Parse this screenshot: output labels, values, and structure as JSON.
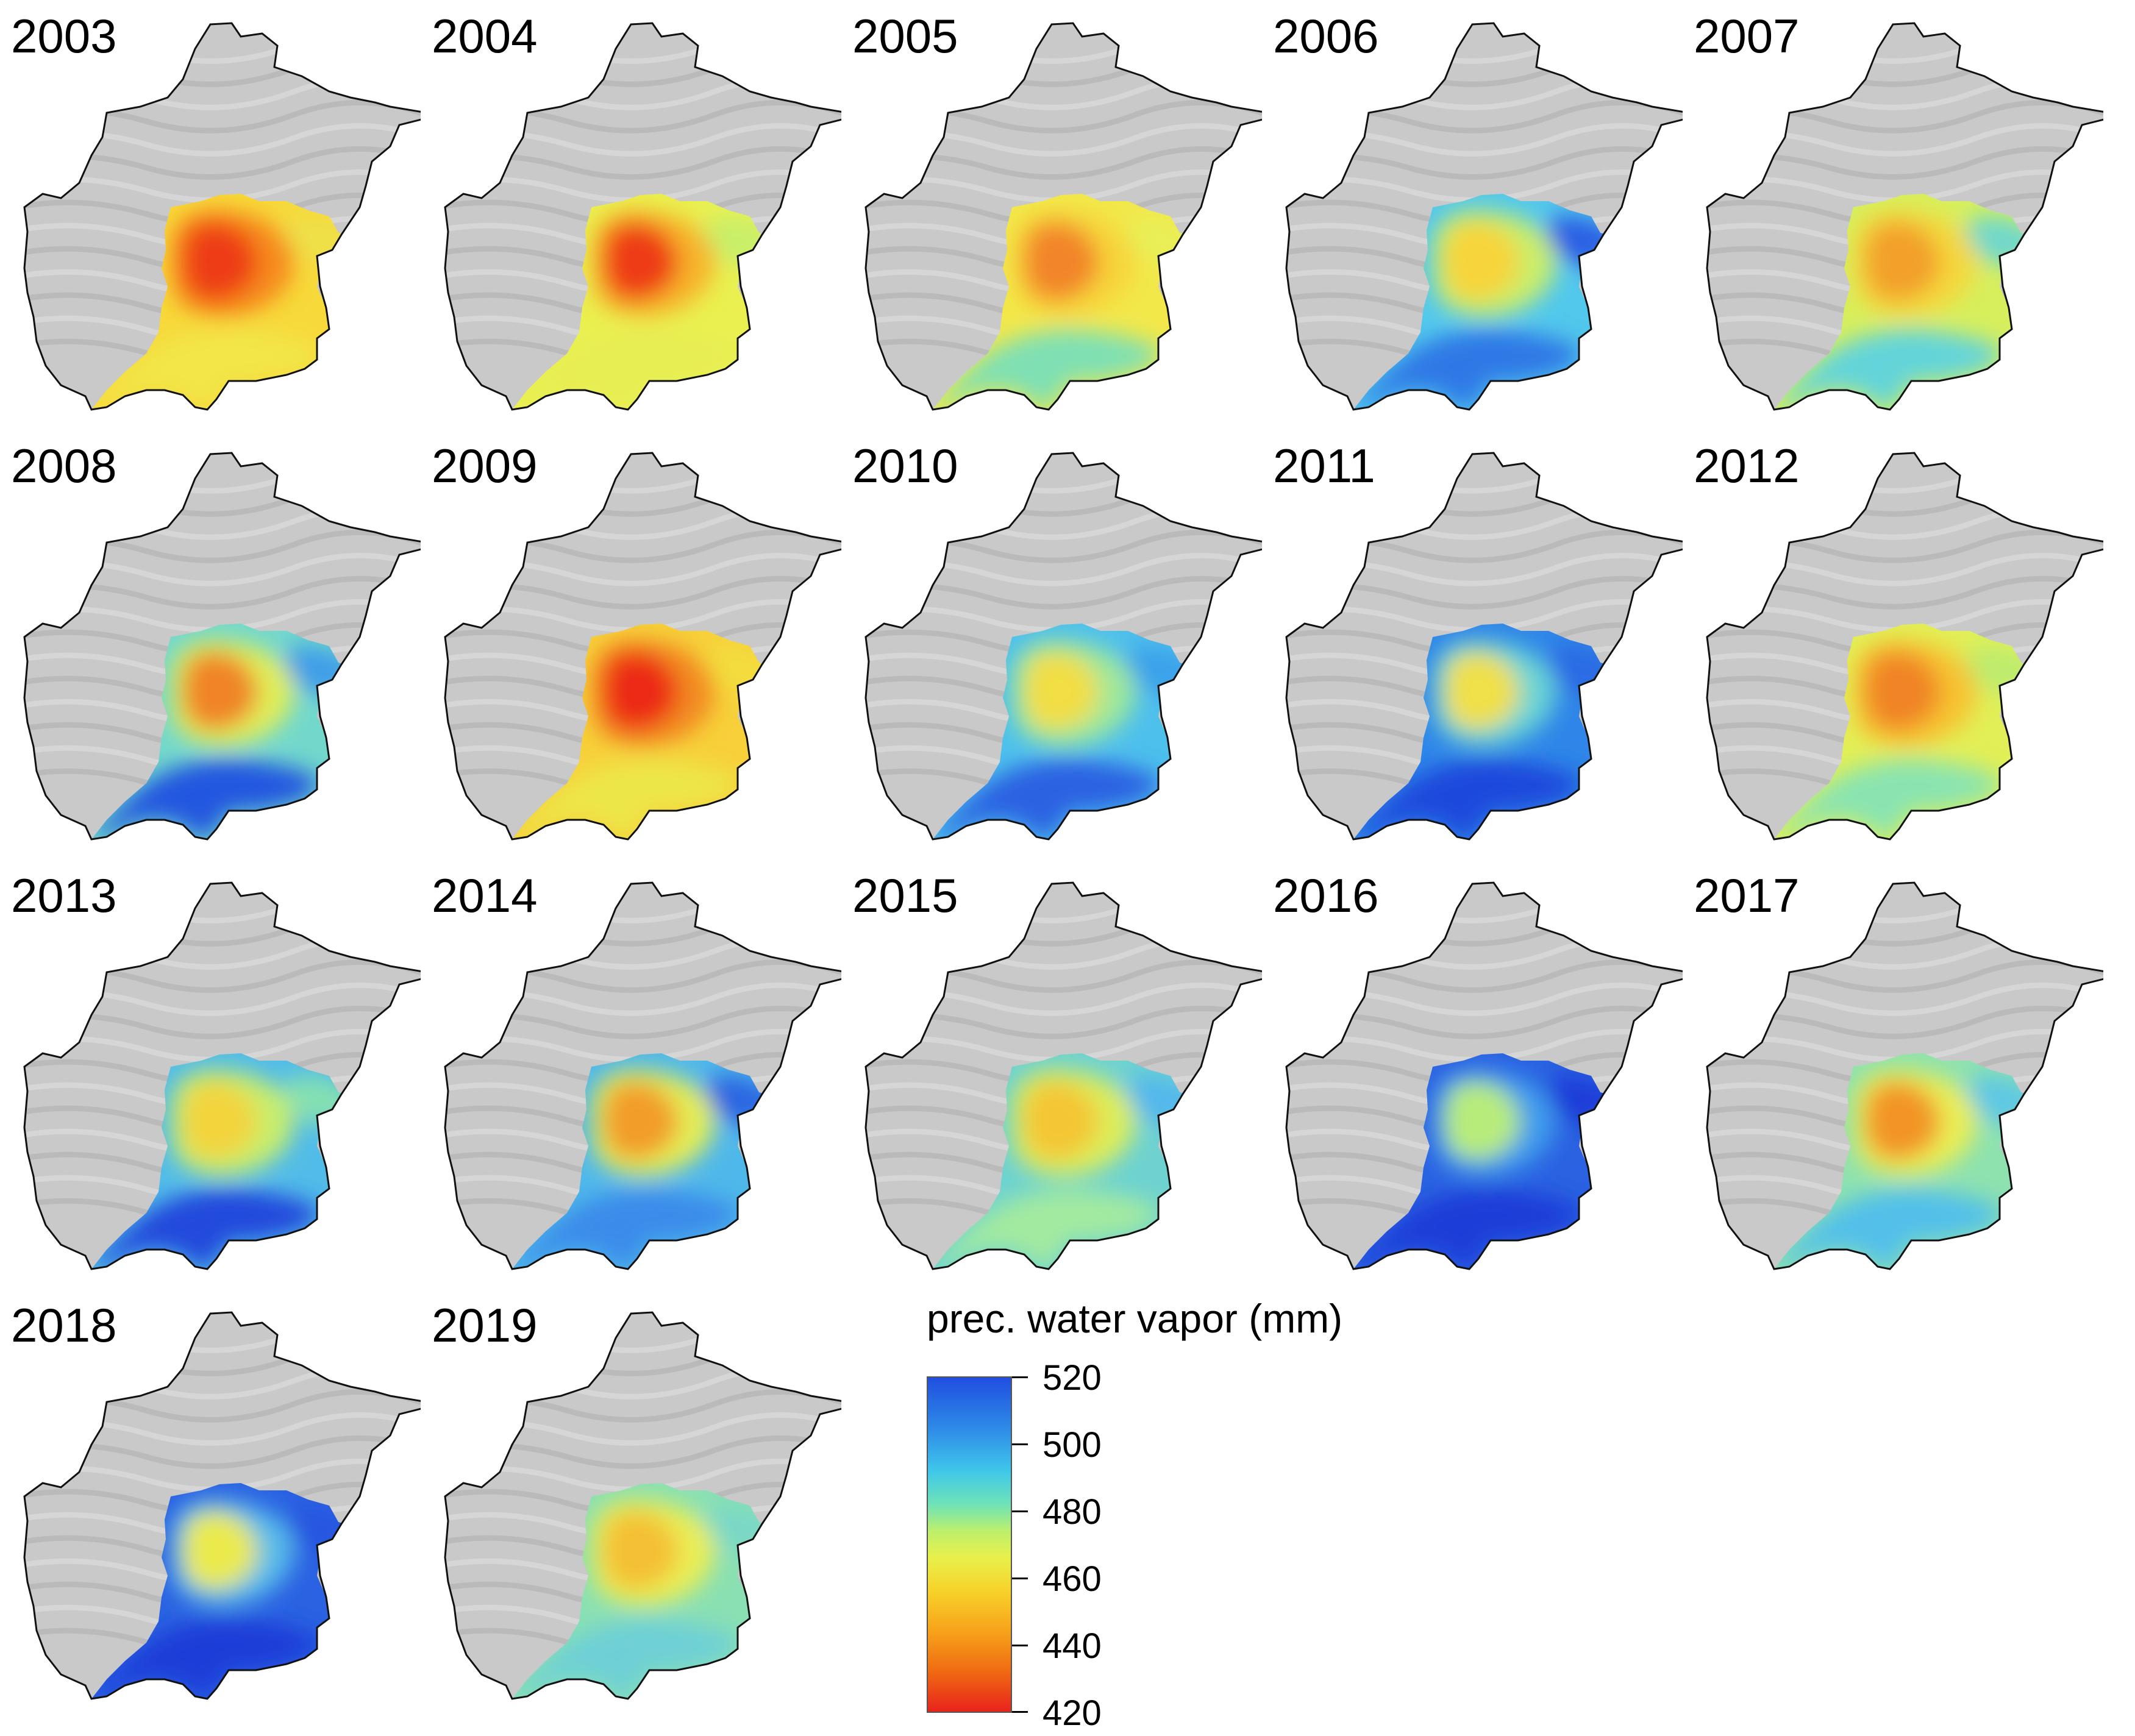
{
  "panels": [
    {
      "year": "2003",
      "core": "#ee3c18",
      "mid": "#f68a1e",
      "outer": "#f7d93a",
      "south": "#f2e64a",
      "east": "#efe04a"
    },
    {
      "year": "2004",
      "core": "#ee3c18",
      "mid": "#f7b22a",
      "outer": "#eaf050",
      "south": "#e7ee52",
      "east": "#c8ef6a"
    },
    {
      "year": "2005",
      "core": "#f2852a",
      "mid": "#f7d43a",
      "outer": "#f2e84a",
      "south": "#7fe0b4",
      "east": "#e9ef56"
    },
    {
      "year": "2006",
      "core": "#f7d43a",
      "mid": "#c9ee6a",
      "outer": "#52c8ec",
      "south": "#2f78e6",
      "east": "#2a5ee4"
    },
    {
      "year": "2007",
      "core": "#f2a02c",
      "mid": "#f5d73c",
      "outer": "#d7ef5c",
      "south": "#64d4da",
      "east": "#6fd8cc"
    },
    {
      "year": "2008",
      "core": "#f08426",
      "mid": "#e0ee58",
      "outer": "#72d8cc",
      "south": "#2456e0",
      "east": "#3f9ee8"
    },
    {
      "year": "2009",
      "core": "#ec2a16",
      "mid": "#f28a22",
      "outer": "#f7d03a",
      "south": "#ede64a",
      "east": "#f3dd3e"
    },
    {
      "year": "2010",
      "core": "#f2de44",
      "mid": "#9fe89a",
      "outer": "#4ec0ec",
      "south": "#2a62e2",
      "east": "#3aa2ea"
    },
    {
      "year": "2011",
      "core": "#f0e048",
      "mid": "#6ad4d4",
      "outer": "#2f86e8",
      "south": "#1f48dc",
      "east": "#2a6ae4"
    },
    {
      "year": "2012",
      "core": "#f08426",
      "mid": "#f7c232",
      "outer": "#e2ef56",
      "south": "#8ae4b0",
      "east": "#bdec6e"
    },
    {
      "year": "2013",
      "core": "#f3d43c",
      "mid": "#c7ee6c",
      "outer": "#52bce8",
      "south": "#2148dc",
      "east": "#84e0b2"
    },
    {
      "year": "2014",
      "core": "#f29d2a",
      "mid": "#e3ee56",
      "outer": "#4fb8ea",
      "south": "#3a8cea",
      "east": "#2a66e2"
    },
    {
      "year": "2015",
      "core": "#f4c636",
      "mid": "#dcee5a",
      "outer": "#6ed2d0",
      "south": "#a2eaa0",
      "east": "#52b8ec"
    },
    {
      "year": "2016",
      "core": "#b8ec7a",
      "mid": "#3f9cec",
      "outer": "#2a62e2",
      "south": "#1f3ed8",
      "east": "#1e3cd8"
    },
    {
      "year": "2017",
      "core": "#f29428",
      "mid": "#eaee54",
      "outer": "#8ee2ae",
      "south": "#52c0ea",
      "east": "#5ec8e4"
    },
    {
      "year": "2018",
      "core": "#eaea4e",
      "mid": "#58bcea",
      "outer": "#2a62e2",
      "south": "#1f3ed8",
      "east": "#2656e0"
    },
    {
      "year": "2019",
      "core": "#f4c034",
      "mid": "#eaee54",
      "outer": "#8ae0b2",
      "south": "#6ed0d6",
      "east": "#7ad8c6"
    }
  ],
  "legend": {
    "title": "prec. water vapor (mm)",
    "ticks": [
      "520",
      "500",
      "480",
      "460",
      "440",
      "420"
    ],
    "min": 420,
    "max": 520
  }
}
